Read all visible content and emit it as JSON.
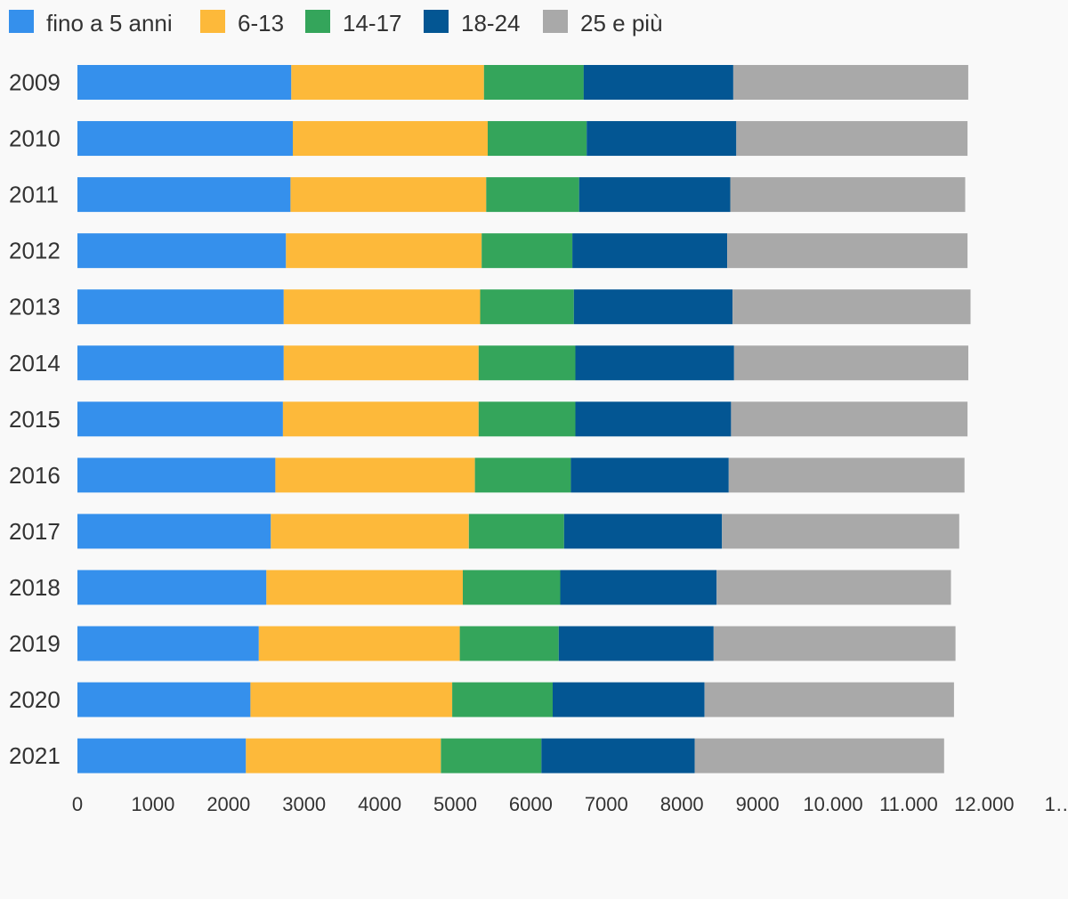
{
  "chart_data": {
    "type": "bar",
    "orientation": "horizontal",
    "stacked": true,
    "categories": [
      "2009",
      "2010",
      "2011",
      "2012",
      "2013",
      "2014",
      "2015",
      "2016",
      "2017",
      "2018",
      "2019",
      "2020",
      "2021"
    ],
    "series": [
      {
        "name": "fino a 5 anni",
        "color": "#3590ec",
        "values": [
          2830,
          2850,
          2820,
          2760,
          2730,
          2730,
          2720,
          2620,
          2560,
          2500,
          2400,
          2290,
          2230
        ]
      },
      {
        "name": "6-13",
        "color": "#fdb93a",
        "values": [
          2550,
          2580,
          2590,
          2590,
          2600,
          2580,
          2590,
          2640,
          2620,
          2600,
          2660,
          2670,
          2580
        ]
      },
      {
        "name": "14-17",
        "color": "#34a55b",
        "values": [
          1320,
          1310,
          1230,
          1200,
          1240,
          1280,
          1280,
          1270,
          1260,
          1290,
          1310,
          1330,
          1330
        ]
      },
      {
        "name": "18-24",
        "color": "#035693",
        "values": [
          1980,
          1980,
          2000,
          2050,
          2100,
          2100,
          2060,
          2090,
          2090,
          2070,
          2050,
          2010,
          2030
        ]
      },
      {
        "name": "25 e più",
        "color": "#a9a9a9",
        "values": [
          3110,
          3060,
          3110,
          3180,
          3150,
          3100,
          3130,
          3120,
          3140,
          3100,
          3200,
          3300,
          3300
        ]
      }
    ],
    "x_ticks": [
      "0",
      "1000",
      "2000",
      "3000",
      "4000",
      "5000",
      "6000",
      "7000",
      "8000",
      "9000",
      "10.000",
      "11.000",
      "12.000",
      "1…"
    ],
    "xlim": [
      0,
      13000
    ],
    "grid": false,
    "legend_position": "top-left"
  }
}
